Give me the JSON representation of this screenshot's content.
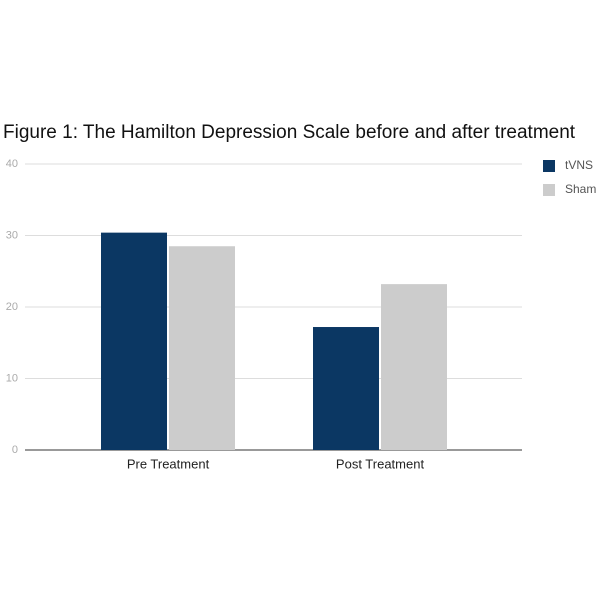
{
  "chart_data": {
    "type": "bar",
    "title": "Figure 1: The Hamilton Depression Scale before and after treatment",
    "categories": [
      "Pre Treatment",
      "Post Treatment"
    ],
    "series": [
      {
        "name": "tVNS",
        "color": "#0b3763",
        "values": [
          30.4,
          17.2
        ]
      },
      {
        "name": "Sham",
        "color": "#cccccc",
        "values": [
          28.5,
          23.2
        ]
      }
    ],
    "ylim": [
      0,
      40
    ],
    "yticks": [
      0,
      10,
      20,
      30,
      40
    ],
    "grid": true,
    "legend": "right"
  }
}
